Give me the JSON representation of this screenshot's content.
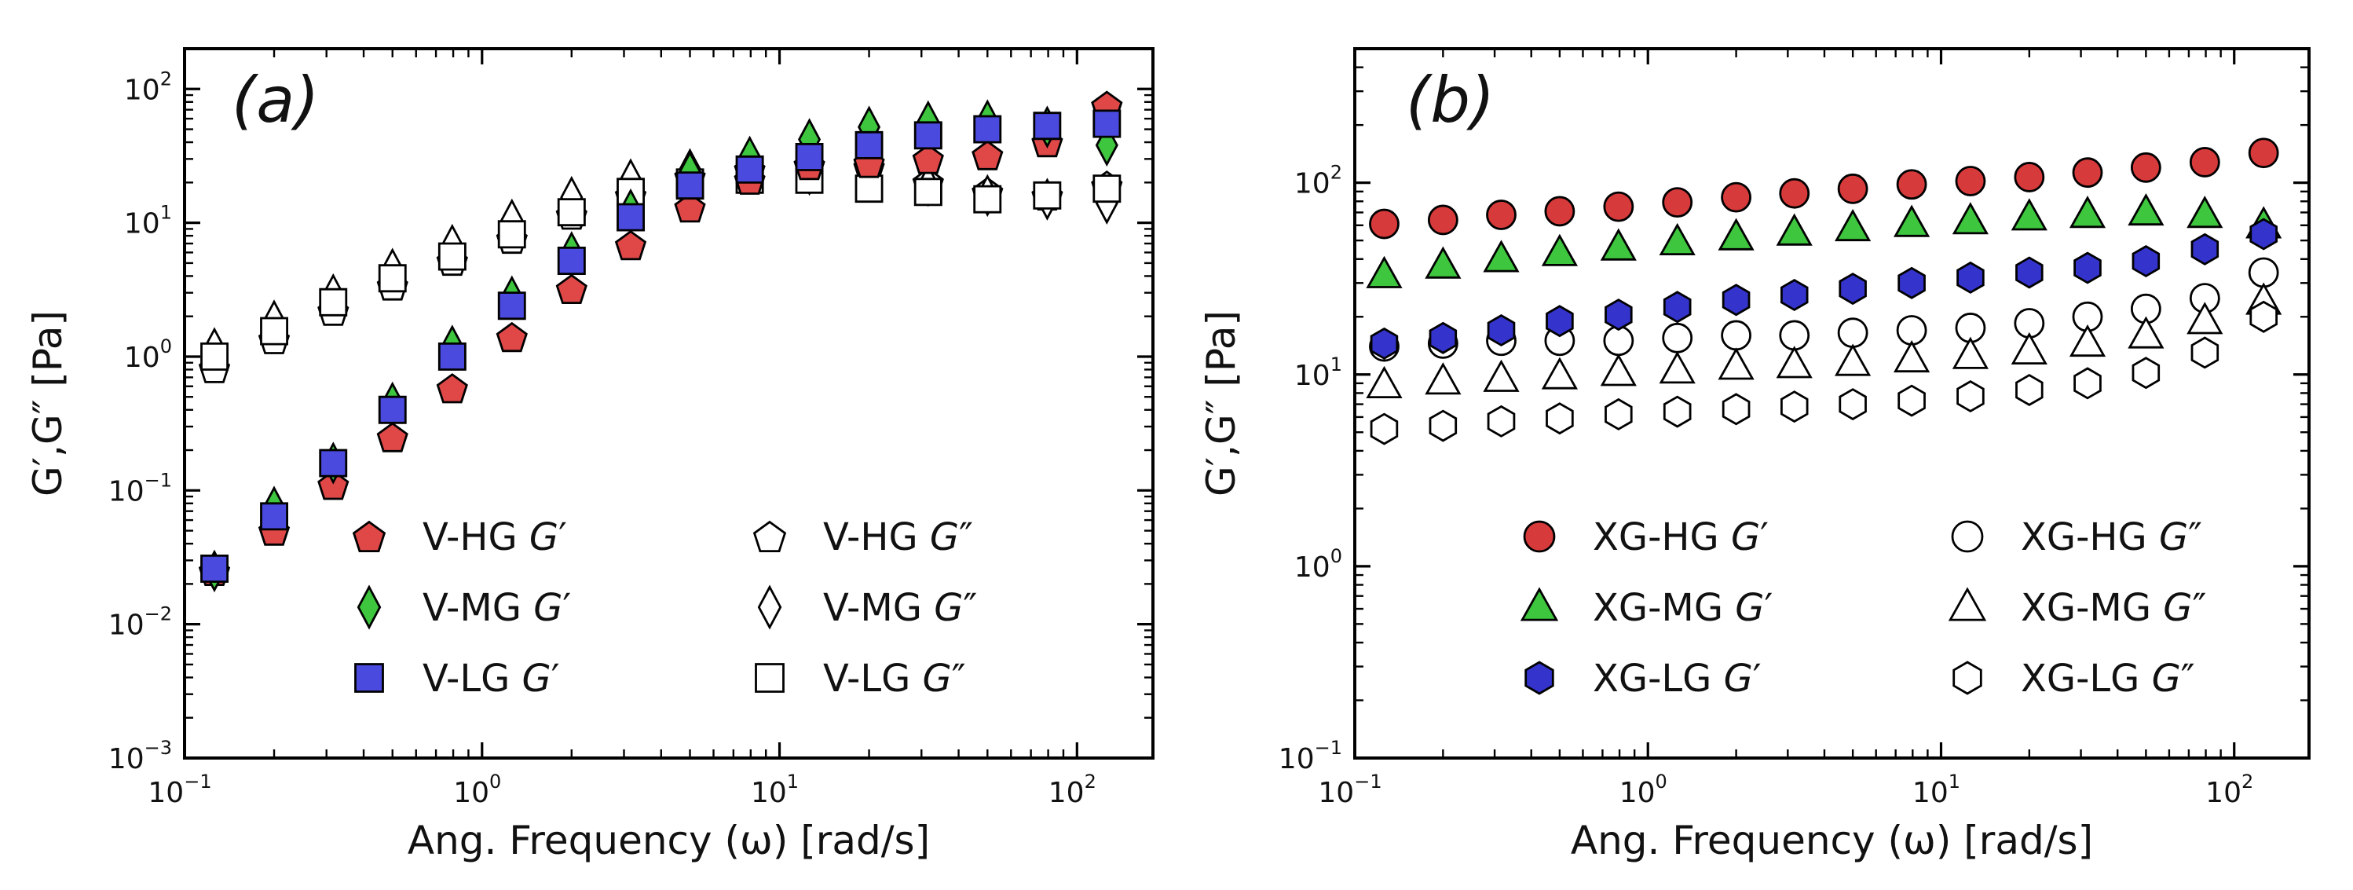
{
  "chart_data": [
    {
      "panel": "(a)",
      "type": "scatter",
      "xscale": "log",
      "yscale": "log",
      "xlim": [
        0.1,
        180
      ],
      "ylim": [
        0.001,
        200
      ],
      "xlabel": "Ang. Frequency (ω) [rad/s]",
      "ylabel": "G′,G″ [Pa]",
      "xticks": [
        {
          "base": "10",
          "exp": "−1",
          "v": 0.1
        },
        {
          "base": "10",
          "exp": "0",
          "v": 1
        },
        {
          "base": "10",
          "exp": "1",
          "v": 10
        },
        {
          "base": "10",
          "exp": "2",
          "v": 100
        }
      ],
      "yticks": [
        {
          "base": "10",
          "exp": "−3",
          "v": 0.001
        },
        {
          "base": "10",
          "exp": "−2",
          "v": 0.01
        },
        {
          "base": "10",
          "exp": "−1",
          "v": 0.1
        },
        {
          "base": "10",
          "exp": "0",
          "v": 1
        },
        {
          "base": "10",
          "exp": "1",
          "v": 10
        },
        {
          "base": "10",
          "exp": "2",
          "v": 100
        }
      ],
      "legend_position": "lower-right",
      "legend_columns": 2,
      "x": [
        0.126,
        0.2,
        0.316,
        0.5,
        0.794,
        1.26,
        2.0,
        3.16,
        5.0,
        7.94,
        12.6,
        20.0,
        31.6,
        50.0,
        79.4,
        126
      ],
      "series": [
        {
          "name": "V-HG",
          "prime": "G′",
          "marker": "pentagon",
          "fill": "#e04848",
          "values": [
            0.025,
            0.05,
            0.11,
            0.25,
            0.58,
            1.4,
            3.2,
            6.8,
            13,
            21,
            27,
            28,
            30,
            32,
            40,
            75
          ]
        },
        {
          "name": "V-MG",
          "prime": "G′",
          "marker": "diamond",
          "fill": "#3ec63e",
          "values": [
            0.025,
            0.075,
            0.16,
            0.45,
            1.2,
            2.8,
            6.0,
            12.5,
            24,
            31,
            42,
            52,
            57,
            58,
            52,
            38
          ]
        },
        {
          "name": "V-LG",
          "prime": "G′",
          "marker": "square",
          "fill": "#4a4ade",
          "values": [
            0.026,
            0.064,
            0.16,
            0.4,
            1.0,
            2.4,
            5.2,
            11,
            19,
            25,
            31,
            38,
            45,
            50,
            53,
            55
          ]
        },
        {
          "name": "V-HG",
          "prime": "G″",
          "marker": "pentagon",
          "fill": "#ffffff",
          "values": [
            0.82,
            1.35,
            2.2,
            3.4,
            5.2,
            7.6,
            11.5,
            16,
            22,
            25,
            27,
            26,
            20,
            17,
            16,
            19
          ]
        },
        {
          "name": "V-MG",
          "prime": "G″",
          "marker": "diamond",
          "fill": "#ffffff",
          "values": [
            1.15,
            1.85,
            2.9,
            4.5,
            6.8,
            10.5,
            15.5,
            21,
            25,
            24,
            23,
            22,
            19,
            16,
            15,
            14
          ]
        },
        {
          "name": "V-LG",
          "prime": "G″",
          "marker": "square",
          "fill": "#ffffff",
          "values": [
            1.0,
            1.55,
            2.55,
            3.85,
            5.6,
            8.2,
            12,
            17,
            20,
            21,
            21,
            18,
            17,
            15,
            16,
            18
          ]
        }
      ],
      "legend": [
        {
          "series": 0,
          "label": "V-HG ",
          "sym": "G",
          "sup": "′"
        },
        {
          "series": 3,
          "label": "V-HG ",
          "sym": "G",
          "sup": "″"
        },
        {
          "series": 1,
          "label": "V-MG ",
          "sym": "G",
          "sup": "′"
        },
        {
          "series": 4,
          "label": "V-MG ",
          "sym": "G",
          "sup": "″"
        },
        {
          "series": 2,
          "label": "V-LG ",
          "sym": "G",
          "sup": "′"
        },
        {
          "series": 5,
          "label": "V-LG ",
          "sym": "G",
          "sup": "″"
        }
      ]
    },
    {
      "panel": "(b)",
      "type": "scatter",
      "xscale": "log",
      "yscale": "log",
      "xlim": [
        0.1,
        180
      ],
      "ylim": [
        0.1,
        500
      ],
      "xlabel": "Ang. Frequency (ω) [rad/s]",
      "ylabel": "G′,G″ [Pa]",
      "xticks": [
        {
          "base": "10",
          "exp": "−1",
          "v": 0.1
        },
        {
          "base": "10",
          "exp": "0",
          "v": 1
        },
        {
          "base": "10",
          "exp": "1",
          "v": 10
        },
        {
          "base": "10",
          "exp": "2",
          "v": 100
        }
      ],
      "yticks": [
        {
          "base": "10",
          "exp": "−1",
          "v": 0.1
        },
        {
          "base": "10",
          "exp": "0",
          "v": 1
        },
        {
          "base": "10",
          "exp": "1",
          "v": 10
        },
        {
          "base": "10",
          "exp": "2",
          "v": 100
        }
      ],
      "legend_position": "lower-right",
      "legend_columns": 2,
      "x": [
        0.126,
        0.2,
        0.316,
        0.5,
        0.794,
        1.26,
        2.0,
        3.16,
        5.0,
        7.94,
        12.6,
        20.0,
        31.6,
        50.0,
        79.4,
        126
      ],
      "series": [
        {
          "name": "XG-HG",
          "prime": "G′",
          "marker": "circle",
          "fill": "#d63a3a",
          "values": [
            61,
            64,
            68,
            71,
            75,
            79,
            84,
            88,
            93,
            98,
            102,
            107,
            113,
            120,
            128,
            143
          ]
        },
        {
          "name": "XG-MG",
          "prime": "G′",
          "marker": "triangle",
          "fill": "#3ec63e",
          "values": [
            33,
            37,
            40,
            43,
            46,
            49,
            52,
            55,
            58,
            61,
            63,
            66,
            68,
            70,
            68,
            60
          ]
        },
        {
          "name": "XG-LG",
          "prime": "G′",
          "marker": "hexagon",
          "fill": "#3434cc",
          "values": [
            14.5,
            15.5,
            17,
            19,
            20.5,
            22.5,
            24.5,
            26,
            28,
            30,
            32,
            34,
            36,
            39,
            45,
            54
          ]
        },
        {
          "name": "XG-HG",
          "prime": "G″",
          "marker": "circle",
          "fill": "#ffffff",
          "values": [
            14,
            14.5,
            15,
            15,
            15,
            15.5,
            16,
            16,
            16.5,
            17,
            17.5,
            18.5,
            20,
            22,
            25,
            34
          ]
        },
        {
          "name": "XG-MG",
          "prime": "G″",
          "marker": "triangle",
          "fill": "#ffffff",
          "values": [
            8.8,
            9.2,
            9.5,
            9.8,
            10.2,
            10.5,
            11,
            11.2,
            11.5,
            12,
            12.5,
            13.2,
            14.5,
            16,
            19,
            24
          ]
        },
        {
          "name": "XG-LG",
          "prime": "G″",
          "marker": "hexagon",
          "fill": "#ffffff",
          "values": [
            5.2,
            5.4,
            5.7,
            5.9,
            6.2,
            6.4,
            6.6,
            6.8,
            7.0,
            7.3,
            7.7,
            8.3,
            9.0,
            10.2,
            13,
            20
          ]
        }
      ],
      "legend": [
        {
          "series": 0,
          "label": "XG-HG ",
          "sym": "G",
          "sup": "′"
        },
        {
          "series": 3,
          "label": "XG-HG ",
          "sym": "G",
          "sup": "″"
        },
        {
          "series": 1,
          "label": "XG-MG ",
          "sym": "G",
          "sup": "′"
        },
        {
          "series": 4,
          "label": "XG-MG ",
          "sym": "G",
          "sup": "″"
        },
        {
          "series": 2,
          "label": "XG-LG ",
          "sym": "G",
          "sup": "′"
        },
        {
          "series": 5,
          "label": "XG-LG ",
          "sym": "G",
          "sup": "″"
        }
      ]
    }
  ]
}
